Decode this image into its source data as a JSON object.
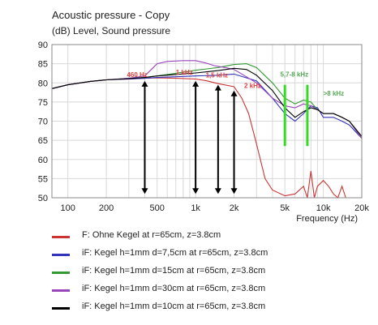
{
  "chart_data": {
    "type": "line",
    "title": "Acoustic pressure - Copy",
    "ylabel": "(dB)  Level, Sound pressure",
    "xlabel": "Frequency  (Hz)",
    "xscale": "log",
    "xlim": [
      75,
      20000
    ],
    "ylim": [
      50,
      90
    ],
    "yticks": [
      "90",
      "85",
      "80",
      "75",
      "70",
      "65",
      "60",
      "55",
      "50"
    ],
    "xticks": [
      {
        "v": 100,
        "label": "100"
      },
      {
        "v": 200,
        "label": "200"
      },
      {
        "v": 500,
        "label": "500"
      },
      {
        "v": 1000,
        "label": "1k"
      },
      {
        "v": 2000,
        "label": "2k"
      },
      {
        "v": 5000,
        "label": "5k"
      },
      {
        "v": 10000,
        "label": "10k"
      },
      {
        "v": 20000,
        "label": "20k"
      }
    ],
    "grid": true,
    "series": [
      {
        "name": "F: Ohne Kegel at r=65cm, z=3.8cm",
        "color": "#cc3333",
        "points": [
          [
            75,
            78.5
          ],
          [
            100,
            79.5
          ],
          [
            150,
            80.4
          ],
          [
            200,
            80.8
          ],
          [
            300,
            81
          ],
          [
            400,
            81.2
          ],
          [
            500,
            81.3
          ],
          [
            700,
            81.2
          ],
          [
            1000,
            81
          ],
          [
            1200,
            80.6
          ],
          [
            1500,
            79.8
          ],
          [
            2000,
            79
          ],
          [
            2300,
            76
          ],
          [
            2600,
            72
          ],
          [
            3000,
            64
          ],
          [
            3500,
            55
          ],
          [
            4000,
            52
          ],
          [
            5000,
            50.5
          ],
          [
            6000,
            51
          ],
          [
            7000,
            53
          ],
          [
            7500,
            49
          ],
          [
            8000,
            57
          ],
          [
            8500,
            50
          ],
          [
            9000,
            53
          ],
          [
            10000,
            54.5
          ],
          [
            11000,
            53
          ],
          [
            12000,
            51
          ],
          [
            13000,
            50
          ],
          [
            14000,
            53
          ],
          [
            15000,
            50
          ]
        ]
      },
      {
        "name": "iF: Kegel h=1mm d=7,5cm at r=65cm, z=3.8cm",
        "color": "#3333bb",
        "points": [
          [
            75,
            78.5
          ],
          [
            100,
            79.5
          ],
          [
            150,
            80.4
          ],
          [
            200,
            80.8
          ],
          [
            300,
            81
          ],
          [
            400,
            81.2
          ],
          [
            500,
            81.4
          ],
          [
            700,
            81.6
          ],
          [
            1000,
            81.8
          ],
          [
            1500,
            82
          ],
          [
            2000,
            82.3
          ],
          [
            3000,
            80.5
          ],
          [
            4000,
            76
          ],
          [
            5000,
            72
          ],
          [
            6000,
            70
          ],
          [
            7000,
            72
          ],
          [
            8000,
            74
          ],
          [
            9000,
            73.5
          ],
          [
            10000,
            71
          ],
          [
            12000,
            71
          ],
          [
            14000,
            70
          ],
          [
            16000,
            69
          ],
          [
            20000,
            65.5
          ]
        ]
      },
      {
        "name": "iF: Kegel h=1mm d=15cm at r=65cm, z=3.8cm",
        "color": "#339933",
        "points": [
          [
            75,
            78.5
          ],
          [
            100,
            79.5
          ],
          [
            150,
            80.4
          ],
          [
            200,
            80.8
          ],
          [
            300,
            81.2
          ],
          [
            400,
            81.4
          ],
          [
            500,
            81.8
          ],
          [
            700,
            82.5
          ],
          [
            1000,
            83.3
          ],
          [
            1500,
            84
          ],
          [
            2000,
            84.8
          ],
          [
            2500,
            85
          ],
          [
            3000,
            84
          ],
          [
            4000,
            80
          ],
          [
            5000,
            76
          ],
          [
            6000,
            74.5
          ],
          [
            7000,
            75.5
          ],
          [
            8000,
            75
          ],
          [
            9000,
            73
          ],
          [
            10000,
            72
          ],
          [
            12000,
            72
          ],
          [
            14000,
            71
          ],
          [
            16000,
            70
          ],
          [
            20000,
            65.5
          ]
        ]
      },
      {
        "name": "iF: Kegel h=1mm d=30cm at r=65cm, z=3.8cm",
        "color": "#9944bb",
        "points": [
          [
            75,
            78.5
          ],
          [
            100,
            79.5
          ],
          [
            150,
            80.4
          ],
          [
            200,
            80.8
          ],
          [
            300,
            81.2
          ],
          [
            400,
            81.8
          ],
          [
            450,
            83.5
          ],
          [
            500,
            85
          ],
          [
            600,
            85.6
          ],
          [
            800,
            85.8
          ],
          [
            1000,
            85.8
          ],
          [
            1200,
            85.2
          ],
          [
            1400,
            84.5
          ],
          [
            1700,
            84
          ],
          [
            2000,
            83.5
          ],
          [
            3000,
            80
          ],
          [
            4000,
            76
          ],
          [
            5000,
            74
          ],
          [
            6000,
            73.5
          ],
          [
            7000,
            74.5
          ],
          [
            8000,
            74
          ],
          [
            9000,
            73
          ],
          [
            10000,
            72
          ],
          [
            12000,
            72
          ],
          [
            14000,
            71
          ],
          [
            16000,
            70
          ],
          [
            20000,
            65.5
          ]
        ]
      },
      {
        "name": "iF: Kegel h=1mm d=10cm at r=65cm, z=3.8cm",
        "color": "#000000",
        "points": [
          [
            75,
            78.5
          ],
          [
            100,
            79.5
          ],
          [
            150,
            80.4
          ],
          [
            200,
            80.8
          ],
          [
            300,
            81.1
          ],
          [
            400,
            81.4
          ],
          [
            500,
            81.8
          ],
          [
            700,
            82.2
          ],
          [
            1000,
            82.6
          ],
          [
            1500,
            83.2
          ],
          [
            2000,
            83.8
          ],
          [
            2500,
            83.5
          ],
          [
            3000,
            82
          ],
          [
            4000,
            78
          ],
          [
            5000,
            73.5
          ],
          [
            6000,
            71
          ],
          [
            7000,
            72.5
          ],
          [
            8000,
            73.5
          ],
          [
            9000,
            73
          ],
          [
            10000,
            72
          ],
          [
            12000,
            72
          ],
          [
            14000,
            71
          ],
          [
            16000,
            70
          ],
          [
            20000,
            66
          ]
        ]
      }
    ],
    "arrows": [
      {
        "x": 400,
        "y1": 51,
        "y2": 80.5
      },
      {
        "x": 1000,
        "y1": 51,
        "y2": 80.5
      },
      {
        "x": 1500,
        "y1": 51,
        "y2": 79.5
      },
      {
        "x": 2000,
        "y1": 51,
        "y2": 78
      }
    ],
    "markers": [
      {
        "x": 5000,
        "y1": 63.5,
        "y2": 79.5
      },
      {
        "x": 7500,
        "y1": 63.5,
        "y2": 79.5
      }
    ],
    "annotations": [
      {
        "text": "460 Hz",
        "x": 290,
        "y": 81.5,
        "color": "#e04040"
      },
      {
        "text": "1 kHz",
        "x": 700,
        "y": 82.2,
        "color": "#e04040"
      },
      {
        "text": "1,5 kHz",
        "x": 1200,
        "y": 81.4,
        "color": "#e04040"
      },
      {
        "text": "2 kHz",
        "x": 2400,
        "y": 78.7,
        "color": "#e04040"
      },
      {
        "text": "5,7-8 kHz",
        "x": 4600,
        "y": 81.6,
        "color": "#55aa55"
      },
      {
        "text": ">8 kHz",
        "x": 10000,
        "y": 76.7,
        "color": "#55aa55"
      }
    ],
    "colors": {
      "axis_bg": "#ffffff",
      "grid": "#d8d8d8",
      "arrow": "#000000",
      "marker": "#33dd22"
    }
  }
}
